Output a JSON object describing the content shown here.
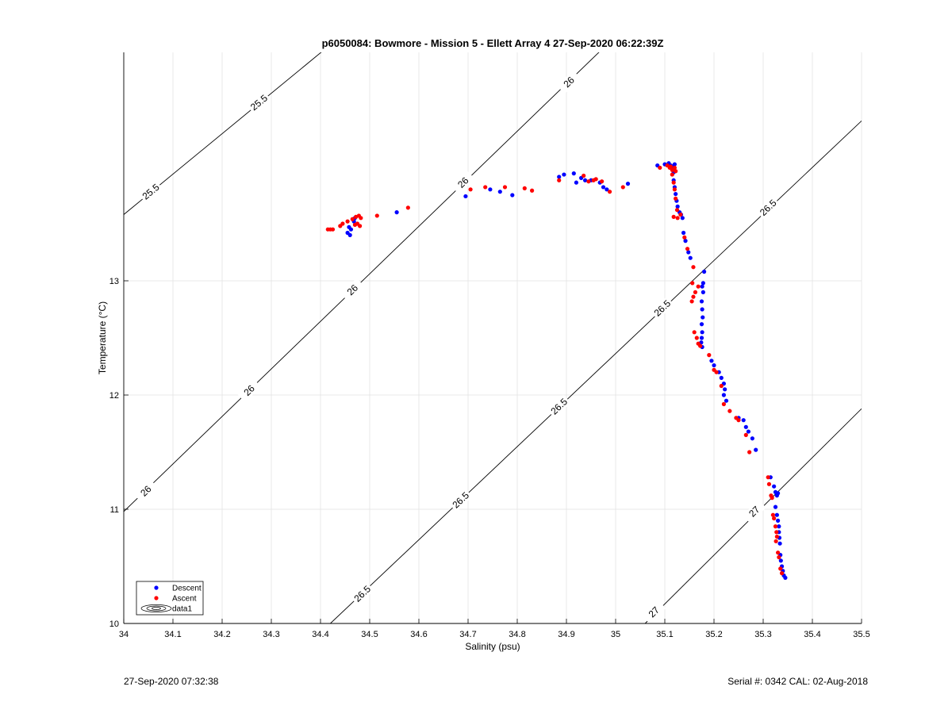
{
  "chart_data": {
    "type": "scatter",
    "title": "p6050084: Bowmore - Mission 5 - Ellett Array 4 27-Sep-2020 06:22:39Z",
    "xlabel": "Salinity (psu)",
    "ylabel": "Temperature (°C)",
    "xlim": [
      34.0,
      35.5
    ],
    "ylim": [
      10.0,
      15.0
    ],
    "xticks": [
      34,
      34.1,
      34.2,
      34.3,
      34.4,
      34.5,
      34.6,
      34.7,
      34.8,
      34.9,
      35,
      35.1,
      35.2,
      35.3,
      35.4,
      35.5
    ],
    "xtick_labels": [
      "34",
      "34.1",
      "34.2",
      "34.3",
      "34.4",
      "34.5",
      "34.6",
      "34.7",
      "34.8",
      "34.9",
      "35",
      "35.1",
      "35.2",
      "35.3",
      "35.4",
      "35.5"
    ],
    "yticks": [
      10,
      11,
      12,
      13
    ],
    "ytick_labels": [
      "10",
      "11",
      "12",
      "13"
    ],
    "grid": true,
    "legend_position": "bottom-left",
    "contours": [
      {
        "label": "25.5",
        "points": [
          [
            34.0,
            13.58
          ],
          [
            34.5,
            15.35
          ]
        ],
        "label_positions": [
          [
            34.055,
            13.78
          ],
          [
            34.275,
            14.56
          ]
        ]
      },
      {
        "label": "26",
        "points": [
          [
            34.0,
            10.98
          ],
          [
            35.05,
            15.35
          ]
        ],
        "label_positions": [
          [
            34.045,
            11.16
          ],
          [
            34.255,
            12.04
          ],
          [
            34.465,
            12.92
          ],
          [
            34.69,
            13.86
          ],
          [
            34.905,
            14.74
          ]
        ]
      },
      {
        "label": "26.5",
        "points": [
          [
            34.42,
            10.0
          ],
          [
            35.5,
            14.4
          ]
        ],
        "label_positions": [
          [
            34.485,
            10.26
          ],
          [
            34.685,
            11.08
          ],
          [
            34.885,
            11.9
          ],
          [
            35.095,
            12.76
          ],
          [
            35.31,
            13.64
          ]
        ]
      },
      {
        "label": "27",
        "points": [
          [
            35.06,
            10.0
          ],
          [
            35.5,
            11.88
          ]
        ],
        "label_positions": [
          [
            35.078,
            10.1
          ],
          [
            35.282,
            10.98
          ]
        ]
      }
    ],
    "series": [
      {
        "name": "Descent",
        "color": "#0000ff",
        "points": [
          [
            34.455,
            13.42
          ],
          [
            34.46,
            13.4
          ],
          [
            34.462,
            13.45
          ],
          [
            34.458,
            13.47
          ],
          [
            34.468,
            13.52
          ],
          [
            34.47,
            13.55
          ],
          [
            34.555,
            13.6
          ],
          [
            34.695,
            13.74
          ],
          [
            34.745,
            13.8
          ],
          [
            34.765,
            13.78
          ],
          [
            34.79,
            13.75
          ],
          [
            34.885,
            13.91
          ],
          [
            34.895,
            13.93
          ],
          [
            34.915,
            13.94
          ],
          [
            34.92,
            13.86
          ],
          [
            34.93,
            13.9
          ],
          [
            34.938,
            13.88
          ],
          [
            34.95,
            13.88
          ],
          [
            34.968,
            13.86
          ],
          [
            34.975,
            13.82
          ],
          [
            34.982,
            13.8
          ],
          [
            35.025,
            13.85
          ],
          [
            35.085,
            14.01
          ],
          [
            35.1,
            14.02
          ],
          [
            35.108,
            14.03
          ],
          [
            35.112,
            14.01
          ],
          [
            35.116,
            14.0
          ],
          [
            35.118,
            13.98
          ],
          [
            35.12,
            14.02
          ],
          [
            35.118,
            13.95
          ],
          [
            35.118,
            13.88
          ],
          [
            35.12,
            13.82
          ],
          [
            35.122,
            13.76
          ],
          [
            35.124,
            13.7
          ],
          [
            35.126,
            13.65
          ],
          [
            35.13,
            13.6
          ],
          [
            35.133,
            13.58
          ],
          [
            35.136,
            13.55
          ],
          [
            35.138,
            13.42
          ],
          [
            35.142,
            13.35
          ],
          [
            35.148,
            13.25
          ],
          [
            35.152,
            13.2
          ],
          [
            35.18,
            13.08
          ],
          [
            35.178,
            12.98
          ],
          [
            35.176,
            12.95
          ],
          [
            35.178,
            12.9
          ],
          [
            35.175,
            12.82
          ],
          [
            35.176,
            12.75
          ],
          [
            35.177,
            12.68
          ],
          [
            35.175,
            12.62
          ],
          [
            35.176,
            12.55
          ],
          [
            35.175,
            12.5
          ],
          [
            35.174,
            12.46
          ],
          [
            35.176,
            12.42
          ],
          [
            35.195,
            12.3
          ],
          [
            35.2,
            12.26
          ],
          [
            35.21,
            12.2
          ],
          [
            35.215,
            12.15
          ],
          [
            35.22,
            12.1
          ],
          [
            35.222,
            12.05
          ],
          [
            35.22,
            12.0
          ],
          [
            35.225,
            11.95
          ],
          [
            35.25,
            11.8
          ],
          [
            35.26,
            11.78
          ],
          [
            35.265,
            11.72
          ],
          [
            35.27,
            11.68
          ],
          [
            35.278,
            11.62
          ],
          [
            35.285,
            11.52
          ],
          [
            35.315,
            11.28
          ],
          [
            35.322,
            11.2
          ],
          [
            35.325,
            11.15
          ],
          [
            35.328,
            11.12
          ],
          [
            35.33,
            11.14
          ],
          [
            35.325,
            11.02
          ],
          [
            35.328,
            10.95
          ],
          [
            35.33,
            10.9
          ],
          [
            35.332,
            10.85
          ],
          [
            35.332,
            10.8
          ],
          [
            35.333,
            10.75
          ],
          [
            35.334,
            10.7
          ],
          [
            35.335,
            10.6
          ],
          [
            35.336,
            10.55
          ],
          [
            35.338,
            10.5
          ],
          [
            35.34,
            10.46
          ],
          [
            35.342,
            10.42
          ],
          [
            35.345,
            10.4
          ]
        ]
      },
      {
        "name": "Ascent",
        "color": "#ff0000",
        "points": [
          [
            34.415,
            13.45
          ],
          [
            34.42,
            13.45
          ],
          [
            34.425,
            13.45
          ],
          [
            34.44,
            13.48
          ],
          [
            34.445,
            13.5
          ],
          [
            34.455,
            13.52
          ],
          [
            34.465,
            13.54
          ],
          [
            34.472,
            13.56
          ],
          [
            34.478,
            13.57
          ],
          [
            34.482,
            13.55
          ],
          [
            34.475,
            13.5
          ],
          [
            34.48,
            13.48
          ],
          [
            34.47,
            13.49
          ],
          [
            34.515,
            13.57
          ],
          [
            34.578,
            13.64
          ],
          [
            34.705,
            13.8
          ],
          [
            34.735,
            13.82
          ],
          [
            34.775,
            13.82
          ],
          [
            34.815,
            13.81
          ],
          [
            34.83,
            13.79
          ],
          [
            34.885,
            13.88
          ],
          [
            34.935,
            13.92
          ],
          [
            34.945,
            13.87
          ],
          [
            34.955,
            13.88
          ],
          [
            34.96,
            13.89
          ],
          [
            34.972,
            13.87
          ],
          [
            34.988,
            13.78
          ],
          [
            35.015,
            13.82
          ],
          [
            35.09,
            13.99
          ],
          [
            35.105,
            14.01
          ],
          [
            35.11,
            13.99
          ],
          [
            35.112,
            14.0
          ],
          [
            35.115,
            13.97
          ],
          [
            35.12,
            13.99
          ],
          [
            35.122,
            13.96
          ],
          [
            35.115,
            13.93
          ],
          [
            35.118,
            13.86
          ],
          [
            35.12,
            13.8
          ],
          [
            35.122,
            13.72
          ],
          [
            35.118,
            13.56
          ],
          [
            35.126,
            13.55
          ],
          [
            35.132,
            13.58
          ],
          [
            35.125,
            13.62
          ],
          [
            35.14,
            13.38
          ],
          [
            35.146,
            13.28
          ],
          [
            35.158,
            13.12
          ],
          [
            35.156,
            12.98
          ],
          [
            35.162,
            12.9
          ],
          [
            35.158,
            12.86
          ],
          [
            35.155,
            12.82
          ],
          [
            35.168,
            12.95
          ],
          [
            35.16,
            12.55
          ],
          [
            35.165,
            12.5
          ],
          [
            35.168,
            12.45
          ],
          [
            35.172,
            12.43
          ],
          [
            35.19,
            12.35
          ],
          [
            35.2,
            12.22
          ],
          [
            35.205,
            12.2
          ],
          [
            35.215,
            12.08
          ],
          [
            35.22,
            11.92
          ],
          [
            35.232,
            11.86
          ],
          [
            35.245,
            11.8
          ],
          [
            35.25,
            11.78
          ],
          [
            35.265,
            11.65
          ],
          [
            35.272,
            11.5
          ],
          [
            35.31,
            11.28
          ],
          [
            35.312,
            11.22
          ],
          [
            35.316,
            11.12
          ],
          [
            35.318,
            11.1
          ],
          [
            35.32,
            10.95
          ],
          [
            35.322,
            10.92
          ],
          [
            35.325,
            10.85
          ],
          [
            35.327,
            10.8
          ],
          [
            35.328,
            10.76
          ],
          [
            35.326,
            10.72
          ],
          [
            35.33,
            10.62
          ],
          [
            35.332,
            10.58
          ],
          [
            35.335,
            10.48
          ],
          [
            35.338,
            10.44
          ]
        ]
      }
    ],
    "legend_extra_entry": "data1"
  },
  "footer": {
    "timestamp": "27-Sep-2020 07:32:38",
    "serial": "Serial #: 0342  CAL: 02-Aug-2018"
  }
}
